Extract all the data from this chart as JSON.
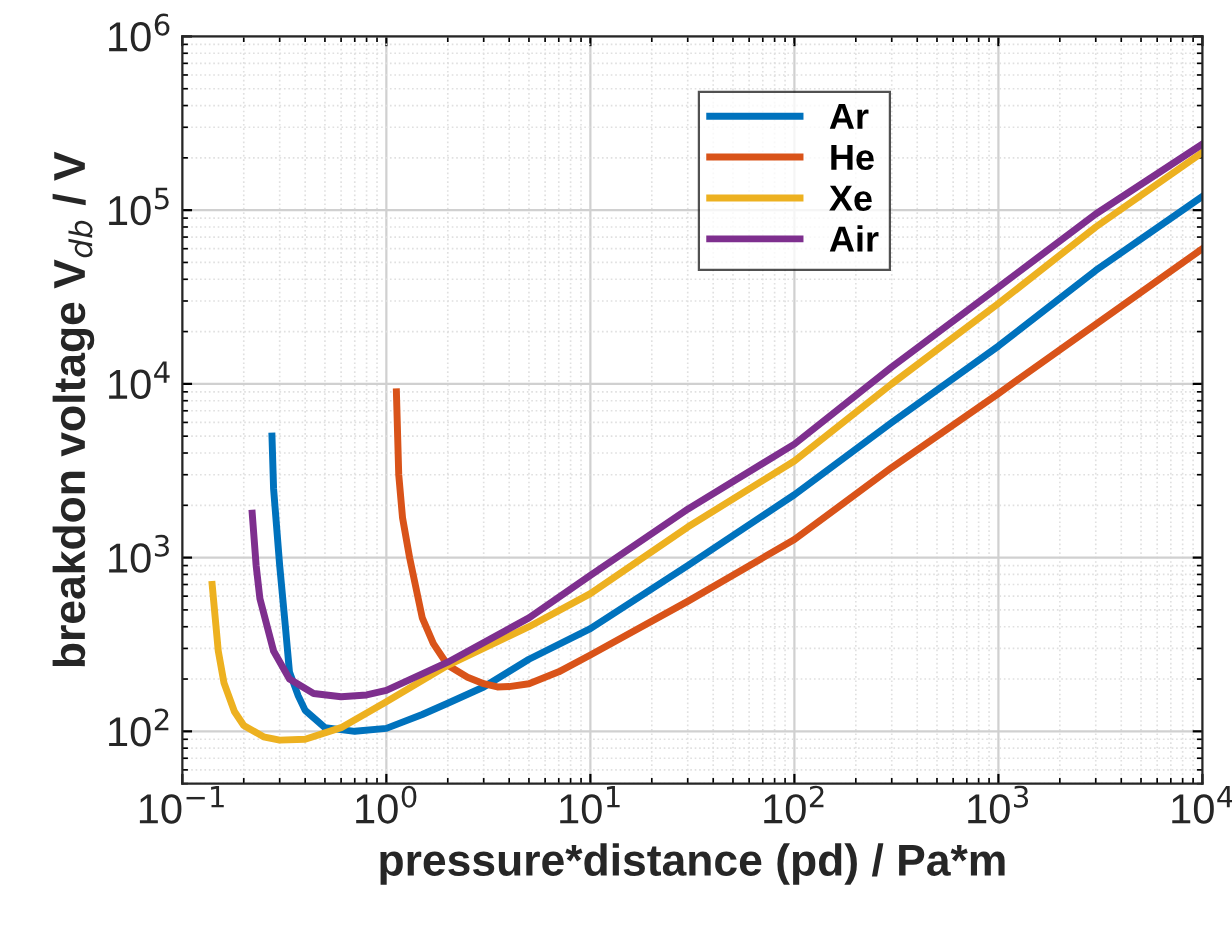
{
  "chart_data": {
    "type": "line",
    "xlabel": "pressure*distance (pd) / Pa*m",
    "ylabel": "breakdon voltage V$_{db}$ / V",
    "log": "xy",
    "grid": true,
    "legend": "top",
    "line_style": "solid",
    "marker": "none",
    "xlim": [
      0.1,
      10000
    ],
    "ylim": [
      50,
      1000000
    ],
    "xticks": [
      {
        "value": 0.1,
        "label": "10$^{−1}$"
      },
      {
        "value": 1,
        "label": "10$^{0}$"
      },
      {
        "value": 10,
        "label": "10$^{1}$"
      },
      {
        "value": 100,
        "label": "10$^{2}$"
      },
      {
        "value": 1000,
        "label": "10$^{3}$"
      },
      {
        "value": 10000,
        "label": "10$^{4}$"
      }
    ],
    "yticks": [
      {
        "value": 100,
        "label": "10$^{2}$"
      },
      {
        "value": 1000,
        "label": "10$^{3}$"
      },
      {
        "value": 10000,
        "label": "10$^{4}$"
      },
      {
        "value": 100000,
        "label": "10$^{5}$"
      },
      {
        "value": 1000000,
        "label": "10$^{6}$"
      }
    ],
    "series": [
      {
        "name": "Ar",
        "color": "#0072bd",
        "x": [
          0.275,
          0.28,
          0.3,
          0.32,
          0.335,
          0.37,
          0.4,
          0.5,
          0.7,
          1,
          1.5,
          2,
          3,
          5,
          10,
          30,
          100,
          300,
          1000,
          3000,
          10000
        ],
        "values": [
          5000,
          2500,
          900,
          400,
          220,
          160,
          132,
          105,
          100,
          104,
          125,
          145,
          180,
          260,
          390,
          900,
          2300,
          6000,
          16500,
          45000,
          120000
        ]
      },
      {
        "name": "He",
        "color": "#d95319",
        "x": [
          1.12,
          1.15,
          1.2,
          1.3,
          1.5,
          1.7,
          2,
          2.5,
          3,
          3.5,
          4,
          5,
          7,
          10,
          30,
          100,
          300,
          1000,
          3000,
          10000
        ],
        "values": [
          9000,
          3000,
          1700,
          1000,
          450,
          320,
          240,
          205,
          188,
          180,
          181,
          188,
          220,
          275,
          560,
          1270,
          3300,
          8800,
          22000,
          60000
        ]
      },
      {
        "name": "Xe",
        "color": "#edb120",
        "x": [
          0.14,
          0.15,
          0.16,
          0.18,
          0.2,
          0.25,
          0.3,
          0.4,
          0.6,
          1,
          2,
          5,
          10,
          30,
          100,
          300,
          1000,
          3000,
          10000
        ],
        "values": [
          700,
          290,
          190,
          130,
          108,
          93,
          89,
          90,
          105,
          148,
          240,
          400,
          620,
          1500,
          3600,
          10000,
          29000,
          80000,
          215000
        ]
      },
      {
        "name": "Air",
        "color": "#7e2f8e",
        "x": [
          0.22,
          0.23,
          0.24,
          0.28,
          0.335,
          0.44,
          0.6,
          0.8,
          1,
          2,
          5,
          10,
          30,
          100,
          300,
          1000,
          3000,
          10000
        ],
        "values": [
          1800,
          900,
          580,
          290,
          200,
          165,
          158,
          162,
          172,
          250,
          450,
          790,
          1900,
          4500,
          12500,
          36000,
          95000,
          240000
        ]
      }
    ]
  }
}
